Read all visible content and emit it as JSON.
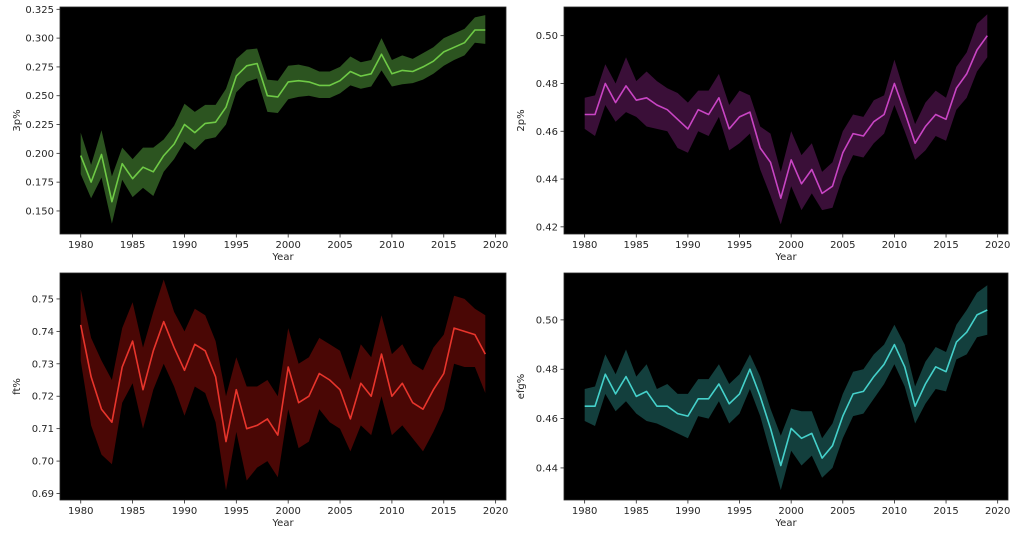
{
  "chart_data": [
    {
      "type": "line",
      "title": "",
      "xlabel": "Year",
      "ylabel": "3p%",
      "line_color": "#6fca46",
      "band_color": "#2c5420",
      "background": "#000000",
      "xlim": [
        1978,
        2021
      ],
      "ylim": [
        0.13,
        0.327
      ],
      "xticks": [
        1980,
        1985,
        1990,
        1995,
        2000,
        2005,
        2010,
        2015,
        2020
      ],
      "yticks": [
        "0.150",
        "0.175",
        "0.200",
        "0.225",
        "0.250",
        "0.275",
        "0.300",
        "0.325"
      ],
      "x": [
        1980,
        1981,
        1982,
        1983,
        1984,
        1985,
        1986,
        1987,
        1988,
        1989,
        1990,
        1991,
        1992,
        1993,
        1994,
        1995,
        1996,
        1997,
        1998,
        1999,
        2000,
        2001,
        2002,
        2003,
        2004,
        2005,
        2006,
        2007,
        2008,
        2009,
        2010,
        2011,
        2012,
        2013,
        2014,
        2015,
        2016,
        2017,
        2018,
        2019
      ],
      "y": [
        0.198,
        0.175,
        0.199,
        0.158,
        0.191,
        0.178,
        0.188,
        0.184,
        0.198,
        0.208,
        0.225,
        0.218,
        0.226,
        0.227,
        0.24,
        0.267,
        0.276,
        0.278,
        0.25,
        0.249,
        0.262,
        0.263,
        0.262,
        0.259,
        0.259,
        0.263,
        0.271,
        0.267,
        0.269,
        0.286,
        0.269,
        0.272,
        0.271,
        0.275,
        0.28,
        0.288,
        0.292,
        0.296,
        0.307,
        0.307
      ],
      "lower": [
        0.182,
        0.161,
        0.179,
        0.139,
        0.177,
        0.162,
        0.17,
        0.163,
        0.184,
        0.195,
        0.21,
        0.203,
        0.212,
        0.214,
        0.225,
        0.253,
        0.262,
        0.265,
        0.236,
        0.235,
        0.247,
        0.249,
        0.25,
        0.248,
        0.248,
        0.252,
        0.259,
        0.256,
        0.258,
        0.272,
        0.258,
        0.26,
        0.261,
        0.264,
        0.269,
        0.276,
        0.281,
        0.285,
        0.296,
        0.295
      ],
      "upper": [
        0.218,
        0.19,
        0.22,
        0.18,
        0.205,
        0.195,
        0.205,
        0.205,
        0.212,
        0.224,
        0.243,
        0.236,
        0.242,
        0.242,
        0.256,
        0.282,
        0.29,
        0.291,
        0.264,
        0.263,
        0.276,
        0.277,
        0.275,
        0.271,
        0.271,
        0.275,
        0.284,
        0.279,
        0.281,
        0.3,
        0.281,
        0.285,
        0.282,
        0.287,
        0.292,
        0.3,
        0.304,
        0.308,
        0.318,
        0.32
      ]
    },
    {
      "type": "line",
      "title": "",
      "xlabel": "Year",
      "ylabel": "2p%",
      "line_color": "#c945c4",
      "band_color": "#3a0f38",
      "background": "#000000",
      "xlim": [
        1978,
        2021
      ],
      "ylim": [
        0.417,
        0.512
      ],
      "xticks": [
        1980,
        1985,
        1990,
        1995,
        2000,
        2005,
        2010,
        2015,
        2020
      ],
      "yticks": [
        "0.42",
        "0.44",
        "0.46",
        "0.48",
        "0.50"
      ],
      "x": [
        1980,
        1981,
        1982,
        1983,
        1984,
        1985,
        1986,
        1987,
        1988,
        1989,
        1990,
        1991,
        1992,
        1993,
        1994,
        1995,
        1996,
        1997,
        1998,
        1999,
        2000,
        2001,
        2002,
        2003,
        2004,
        2005,
        2006,
        2007,
        2008,
        2009,
        2010,
        2011,
        2012,
        2013,
        2014,
        2015,
        2016,
        2017,
        2018,
        2019
      ],
      "y": [
        0.467,
        0.467,
        0.48,
        0.472,
        0.479,
        0.473,
        0.474,
        0.471,
        0.469,
        0.465,
        0.461,
        0.469,
        0.467,
        0.474,
        0.461,
        0.466,
        0.468,
        0.453,
        0.447,
        0.432,
        0.448,
        0.438,
        0.444,
        0.434,
        0.437,
        0.451,
        0.459,
        0.458,
        0.464,
        0.467,
        0.48,
        0.468,
        0.455,
        0.462,
        0.467,
        0.465,
        0.478,
        0.484,
        0.494,
        0.5
      ],
      "lower": [
        0.461,
        0.458,
        0.471,
        0.464,
        0.468,
        0.466,
        0.462,
        0.461,
        0.46,
        0.453,
        0.451,
        0.46,
        0.458,
        0.466,
        0.452,
        0.455,
        0.459,
        0.444,
        0.433,
        0.421,
        0.437,
        0.427,
        0.434,
        0.427,
        0.428,
        0.441,
        0.45,
        0.449,
        0.455,
        0.459,
        0.471,
        0.46,
        0.448,
        0.452,
        0.458,
        0.456,
        0.469,
        0.474,
        0.485,
        0.491
      ],
      "upper": [
        0.474,
        0.475,
        0.488,
        0.48,
        0.491,
        0.481,
        0.485,
        0.481,
        0.478,
        0.476,
        0.472,
        0.477,
        0.477,
        0.484,
        0.471,
        0.477,
        0.475,
        0.462,
        0.459,
        0.443,
        0.46,
        0.45,
        0.455,
        0.443,
        0.447,
        0.46,
        0.467,
        0.466,
        0.473,
        0.475,
        0.49,
        0.476,
        0.463,
        0.472,
        0.477,
        0.474,
        0.487,
        0.493,
        0.505,
        0.509
      ]
    },
    {
      "type": "line",
      "title": "",
      "xlabel": "Year",
      "ylabel": "ft%",
      "line_color": "#e8352c",
      "band_color": "#4a0705",
      "background": "#000000",
      "xlim": [
        1978,
        2021
      ],
      "ylim": [
        0.688,
        0.758
      ],
      "xticks": [
        1980,
        1985,
        1990,
        1995,
        2000,
        2005,
        2010,
        2015,
        2020
      ],
      "yticks": [
        "0.69",
        "0.70",
        "0.71",
        "0.72",
        "0.73",
        "0.74",
        "0.75"
      ],
      "x": [
        1980,
        1981,
        1982,
        1983,
        1984,
        1985,
        1986,
        1987,
        1988,
        1989,
        1990,
        1991,
        1992,
        1993,
        1994,
        1995,
        1996,
        1997,
        1998,
        1999,
        2000,
        2001,
        2002,
        2003,
        2004,
        2005,
        2006,
        2007,
        2008,
        2009,
        2010,
        2011,
        2012,
        2013,
        2014,
        2015,
        2016,
        2017,
        2018,
        2019
      ],
      "y": [
        0.742,
        0.726,
        0.716,
        0.712,
        0.729,
        0.737,
        0.722,
        0.734,
        0.743,
        0.735,
        0.728,
        0.736,
        0.734,
        0.726,
        0.706,
        0.722,
        0.71,
        0.711,
        0.713,
        0.708,
        0.729,
        0.718,
        0.72,
        0.727,
        0.725,
        0.722,
        0.713,
        0.724,
        0.72,
        0.733,
        0.72,
        0.724,
        0.718,
        0.716,
        0.722,
        0.727,
        0.741,
        0.74,
        0.739,
        0.733
      ],
      "lower": [
        0.731,
        0.711,
        0.702,
        0.699,
        0.718,
        0.724,
        0.71,
        0.722,
        0.73,
        0.723,
        0.714,
        0.723,
        0.721,
        0.712,
        0.691,
        0.709,
        0.694,
        0.698,
        0.7,
        0.695,
        0.716,
        0.704,
        0.706,
        0.716,
        0.712,
        0.71,
        0.703,
        0.711,
        0.708,
        0.72,
        0.708,
        0.711,
        0.707,
        0.703,
        0.709,
        0.716,
        0.73,
        0.729,
        0.729,
        0.721
      ],
      "upper": [
        0.753,
        0.738,
        0.731,
        0.725,
        0.741,
        0.749,
        0.735,
        0.746,
        0.756,
        0.746,
        0.74,
        0.747,
        0.745,
        0.737,
        0.72,
        0.732,
        0.723,
        0.723,
        0.725,
        0.72,
        0.741,
        0.73,
        0.732,
        0.738,
        0.736,
        0.734,
        0.725,
        0.736,
        0.732,
        0.745,
        0.733,
        0.736,
        0.73,
        0.728,
        0.735,
        0.739,
        0.751,
        0.75,
        0.747,
        0.745
      ]
    },
    {
      "type": "line",
      "title": "",
      "xlabel": "Year",
      "ylabel": "efg%",
      "line_color": "#45d1cb",
      "band_color": "#133f3d",
      "background": "#000000",
      "xlim": [
        1978,
        2021
      ],
      "ylim": [
        0.427,
        0.519
      ],
      "xticks": [
        1980,
        1985,
        1990,
        1995,
        2000,
        2005,
        2010,
        2015,
        2020
      ],
      "yticks": [
        "0.44",
        "0.46",
        "0.48",
        "0.50"
      ],
      "x": [
        1980,
        1981,
        1982,
        1983,
        1984,
        1985,
        1986,
        1987,
        1988,
        1989,
        1990,
        1991,
        1992,
        1993,
        1994,
        1995,
        1996,
        1997,
        1998,
        1999,
        2000,
        2001,
        2002,
        2003,
        2004,
        2005,
        2006,
        2007,
        2008,
        2009,
        2010,
        2011,
        2012,
        2013,
        2014,
        2015,
        2016,
        2017,
        2018,
        2019
      ],
      "y": [
        0.465,
        0.465,
        0.478,
        0.47,
        0.477,
        0.469,
        0.471,
        0.465,
        0.465,
        0.462,
        0.461,
        0.468,
        0.468,
        0.474,
        0.466,
        0.47,
        0.48,
        0.469,
        0.456,
        0.441,
        0.456,
        0.452,
        0.454,
        0.444,
        0.449,
        0.461,
        0.47,
        0.471,
        0.477,
        0.482,
        0.49,
        0.481,
        0.465,
        0.474,
        0.481,
        0.479,
        0.491,
        0.495,
        0.502,
        0.504
      ],
      "lower": [
        0.459,
        0.457,
        0.47,
        0.463,
        0.467,
        0.462,
        0.459,
        0.458,
        0.456,
        0.454,
        0.452,
        0.461,
        0.46,
        0.467,
        0.458,
        0.462,
        0.472,
        0.461,
        0.446,
        0.431,
        0.447,
        0.441,
        0.445,
        0.436,
        0.44,
        0.452,
        0.461,
        0.462,
        0.468,
        0.474,
        0.482,
        0.473,
        0.458,
        0.466,
        0.472,
        0.471,
        0.484,
        0.486,
        0.493,
        0.494
      ],
      "upper": [
        0.472,
        0.473,
        0.486,
        0.478,
        0.488,
        0.477,
        0.482,
        0.472,
        0.474,
        0.47,
        0.47,
        0.476,
        0.476,
        0.482,
        0.474,
        0.478,
        0.486,
        0.477,
        0.464,
        0.453,
        0.464,
        0.463,
        0.463,
        0.452,
        0.458,
        0.47,
        0.479,
        0.48,
        0.486,
        0.49,
        0.498,
        0.49,
        0.473,
        0.483,
        0.489,
        0.487,
        0.498,
        0.504,
        0.511,
        0.514
      ]
    }
  ]
}
